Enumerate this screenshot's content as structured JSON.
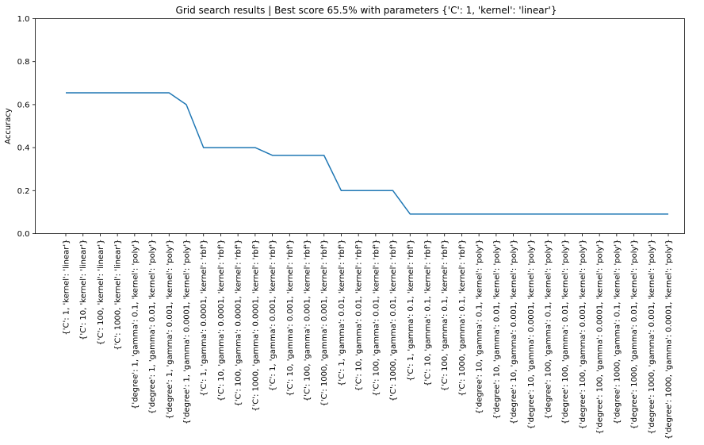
{
  "chart_data": {
    "type": "line",
    "title": "Grid search results | Best score  65.5% with parameters {'C': 1, 'kernel': 'linear'}",
    "xlabel": "",
    "ylabel": "Accuracy",
    "ylim": [
      0,
      1
    ],
    "yticks": [
      "0.0",
      "0.2",
      "0.4",
      "0.6",
      "0.8",
      "1.0"
    ],
    "grid": false,
    "line_color": "#1f77b4",
    "categories": [
      "{'C': 1, 'kernel': 'linear'}",
      "{'C': 10, 'kernel': 'linear'}",
      "{'C': 100, 'kernel': 'linear'}",
      "{'C': 1000, 'kernel': 'linear'}",
      "{'degree': 1, 'gamma': 0.1, 'kernel': 'poly'}",
      "{'degree': 1, 'gamma': 0.01, 'kernel': 'poly'}",
      "{'degree': 1, 'gamma': 0.001, 'kernel': 'poly'}",
      "{'degree': 1, 'gamma': 0.0001, 'kernel': 'poly'}",
      "{'C': 1, 'gamma': 0.0001, 'kernel': 'rbf'}",
      "{'C': 10, 'gamma': 0.0001, 'kernel': 'rbf'}",
      "{'C': 100, 'gamma': 0.0001, 'kernel': 'rbf'}",
      "{'C': 1000, 'gamma': 0.0001, 'kernel': 'rbf'}",
      "{'C': 1, 'gamma': 0.001, 'kernel': 'rbf'}",
      "{'C': 10, 'gamma': 0.001, 'kernel': 'rbf'}",
      "{'C': 100, 'gamma': 0.001, 'kernel': 'rbf'}",
      "{'C': 1000, 'gamma': 0.001, 'kernel': 'rbf'}",
      "{'C': 1, 'gamma': 0.01, 'kernel': 'rbf'}",
      "{'C': 10, 'gamma': 0.01, 'kernel': 'rbf'}",
      "{'C': 100, 'gamma': 0.01, 'kernel': 'rbf'}",
      "{'C': 1000, 'gamma': 0.01, 'kernel': 'rbf'}",
      "{'C': 1, 'gamma': 0.1, 'kernel': 'rbf'}",
      "{'C': 10, 'gamma': 0.1, 'kernel': 'rbf'}",
      "{'C': 100, 'gamma': 0.1, 'kernel': 'rbf'}",
      "{'C': 1000, 'gamma': 0.1, 'kernel': 'rbf'}",
      "{'degree': 10, 'gamma': 0.1, 'kernel': 'poly'}",
      "{'degree': 10, 'gamma': 0.01, 'kernel': 'poly'}",
      "{'degree': 10, 'gamma': 0.001, 'kernel': 'poly'}",
      "{'degree': 10, 'gamma': 0.0001, 'kernel': 'poly'}",
      "{'degree': 100, 'gamma': 0.1, 'kernel': 'poly'}",
      "{'degree': 100, 'gamma': 0.01, 'kernel': 'poly'}",
      "{'degree': 100, 'gamma': 0.001, 'kernel': 'poly'}",
      "{'degree': 100, 'gamma': 0.0001, 'kernel': 'poly'}",
      "{'degree': 1000, 'gamma': 0.1, 'kernel': 'poly'}",
      "{'degree': 1000, 'gamma': 0.01, 'kernel': 'poly'}",
      "{'degree': 1000, 'gamma': 0.001, 'kernel': 'poly'}",
      "{'degree': 1000, 'gamma': 0.0001, 'kernel': 'poly'}"
    ],
    "values": [
      0.655,
      0.655,
      0.655,
      0.655,
      0.655,
      0.655,
      0.655,
      0.6,
      0.4,
      0.4,
      0.4,
      0.4,
      0.364,
      0.364,
      0.364,
      0.364,
      0.2,
      0.2,
      0.2,
      0.2,
      0.091,
      0.091,
      0.091,
      0.091,
      0.091,
      0.091,
      0.091,
      0.091,
      0.091,
      0.091,
      0.091,
      0.091,
      0.091,
      0.091,
      0.091,
      0.091
    ]
  }
}
